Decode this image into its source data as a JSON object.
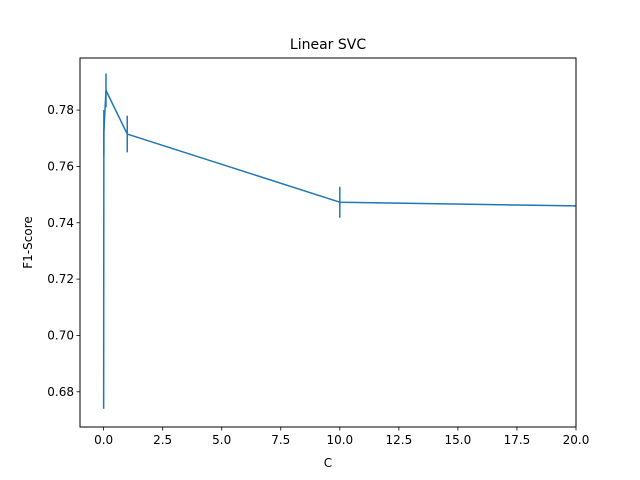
{
  "chart_data": {
    "type": "line",
    "title": "Linear SVC",
    "xlabel": "C",
    "ylabel": "F1-Score",
    "xlim": [
      -1.0,
      20.0
    ],
    "ylim": [
      0.6675,
      0.7985
    ],
    "xticks": [
      0.0,
      2.5,
      5.0,
      7.5,
      10.0,
      12.5,
      15.0,
      17.5,
      20.0
    ],
    "xtick_labels": [
      "0.0",
      "2.5",
      "5.0",
      "7.5",
      "10.0",
      "12.5",
      "15.0",
      "17.5",
      "20.0"
    ],
    "yticks": [
      0.68,
      0.7,
      0.72,
      0.74,
      0.76,
      0.78
    ],
    "ytick_labels": [
      "0.68",
      "0.70",
      "0.72",
      "0.74",
      "0.76",
      "0.78"
    ],
    "grid": false,
    "legend": false,
    "series_color": "#1f77b4",
    "series": [
      {
        "x": [
          0.001,
          0.01,
          0.1,
          1,
          10,
          20
        ],
        "y": [
          0.674,
          0.772,
          0.787,
          0.7715,
          0.7473,
          0.746
        ],
        "yerr": [
          0.0,
          0.008,
          0.006,
          0.0065,
          0.0055,
          0.0
        ]
      }
    ]
  }
}
